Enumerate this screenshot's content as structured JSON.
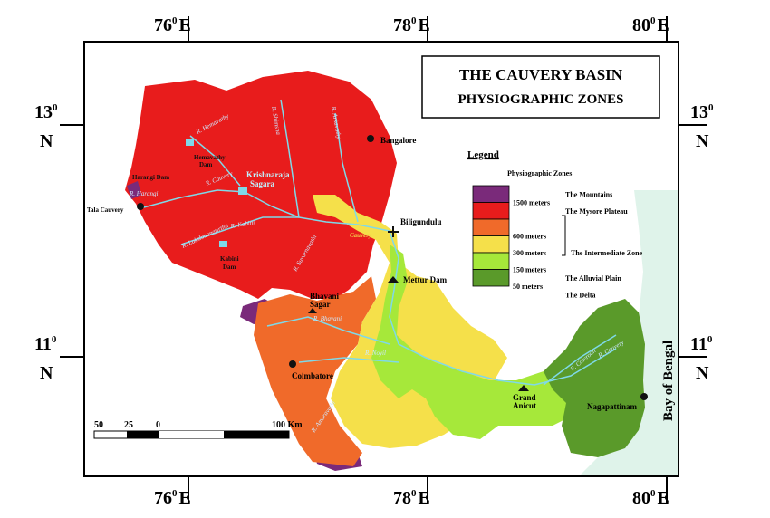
{
  "title": {
    "line1": "THE CAUVERY BASIN",
    "line2": "PHYSIOGRAPHIC ZONES"
  },
  "coords": {
    "top": [
      "76",
      "78",
      "80"
    ],
    "bottom": [
      "76",
      "78",
      "80"
    ],
    "east_suffix": "E",
    "left": [
      "13",
      "11"
    ],
    "right": [
      "13",
      "11"
    ],
    "north_suffix": "N",
    "degree": "0"
  },
  "legend": {
    "heading": "Legend",
    "subheading": "Physiographic Zones",
    "items": [
      {
        "color": "#7a2a7a",
        "elevation": "1500 meters",
        "zone": "The Mountains"
      },
      {
        "color": "#e81c1c",
        "elevation": "",
        "zone": "The Mysore Plateau"
      },
      {
        "color": "#f06a2a",
        "elevation": "600 meters",
        "zone": ""
      },
      {
        "color": "#f5e04a",
        "elevation": "300 meters",
        "zone": "The Intermediate Zone"
      },
      {
        "color": "#a6e83a",
        "elevation": "150 meters",
        "zone": ""
      },
      {
        "color": "#5a9a2a",
        "elevation": "50 meters",
        "zone": "The Alluvial Plain"
      },
      {
        "color": "",
        "elevation": "",
        "zone": "The Delta"
      }
    ]
  },
  "places": {
    "bangalore": "Bangalore",
    "biligundulu": "Biligundulu",
    "mettur": "Mettur Dam",
    "bhavani_sagar_1": "Bhavani",
    "bhavani_sagar_2": "Sagar",
    "coimbatore": "Coimbatore",
    "grand_anicut_1": "Grand",
    "grand_anicut_2": "Anicut",
    "nagapattinam": "Nagapattinam",
    "tala_cauvery": "Tala Cauvery",
    "harangi_dam": "Harangi Dam",
    "hemavathy_dam_1": "Hemavathy",
    "hemavathy_dam_2": "Dam",
    "krs_1": "Krishnaraja",
    "krs_2": "Sagara",
    "kabini_dam_1": "Kabini",
    "kabini_dam_2": "Dam"
  },
  "rivers": {
    "hemavathy": "R. Hemavathy",
    "shimsha": "R. Shimsha",
    "arkavathy": "R. Arkavathy",
    "cauvery_upper": "R. Cauvery",
    "harangi": "R. Harangi",
    "kabini": "R. Kabini",
    "lakshmanatirtha": "R. Lakshmanatirtha",
    "suvarnavathi": "R. Suvarnavathi",
    "cauvery_mid": "Cauvery",
    "bhavani": "R. Bhavani",
    "noyil": "R. Noyil",
    "amaravathi": "R. Amaravathi",
    "coleroon": "R. Coleroon",
    "cauvery_delta": "R. Cauvery"
  },
  "sea": "Bay of Bengal",
  "scale": {
    "labels": [
      "50",
      "25",
      "0",
      "100 Km"
    ]
  },
  "colors": {
    "mountains": "#7a2a7a",
    "plateau": "#e81c1c",
    "band600": "#f06a2a",
    "band300": "#f5e04a",
    "band150": "#a6e83a",
    "delta": "#5a9a2a",
    "sea": "#dff3ea",
    "river": "#7fd9e8"
  }
}
